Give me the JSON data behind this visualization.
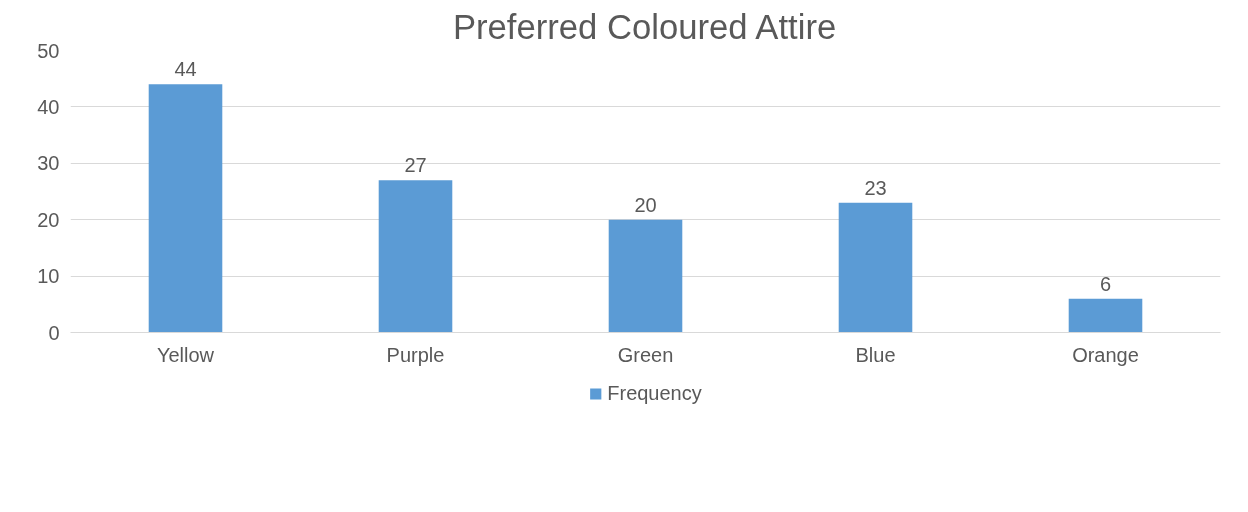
{
  "chart_data": {
    "type": "bar",
    "title": "Preferred Coloured Attire",
    "categories": [
      "Yellow",
      "Purple",
      "Green",
      "Blue",
      "Orange"
    ],
    "series": [
      {
        "name": "Frequency",
        "color": "#5b9bd5",
        "values": [
          44,
          27,
          20,
          23,
          6
        ]
      }
    ],
    "ylim": [
      0,
      50
    ],
    "yticks": [
      0,
      10,
      20,
      30,
      40,
      50
    ],
    "grid": "y",
    "legend": "bottom",
    "data_labels": true
  }
}
